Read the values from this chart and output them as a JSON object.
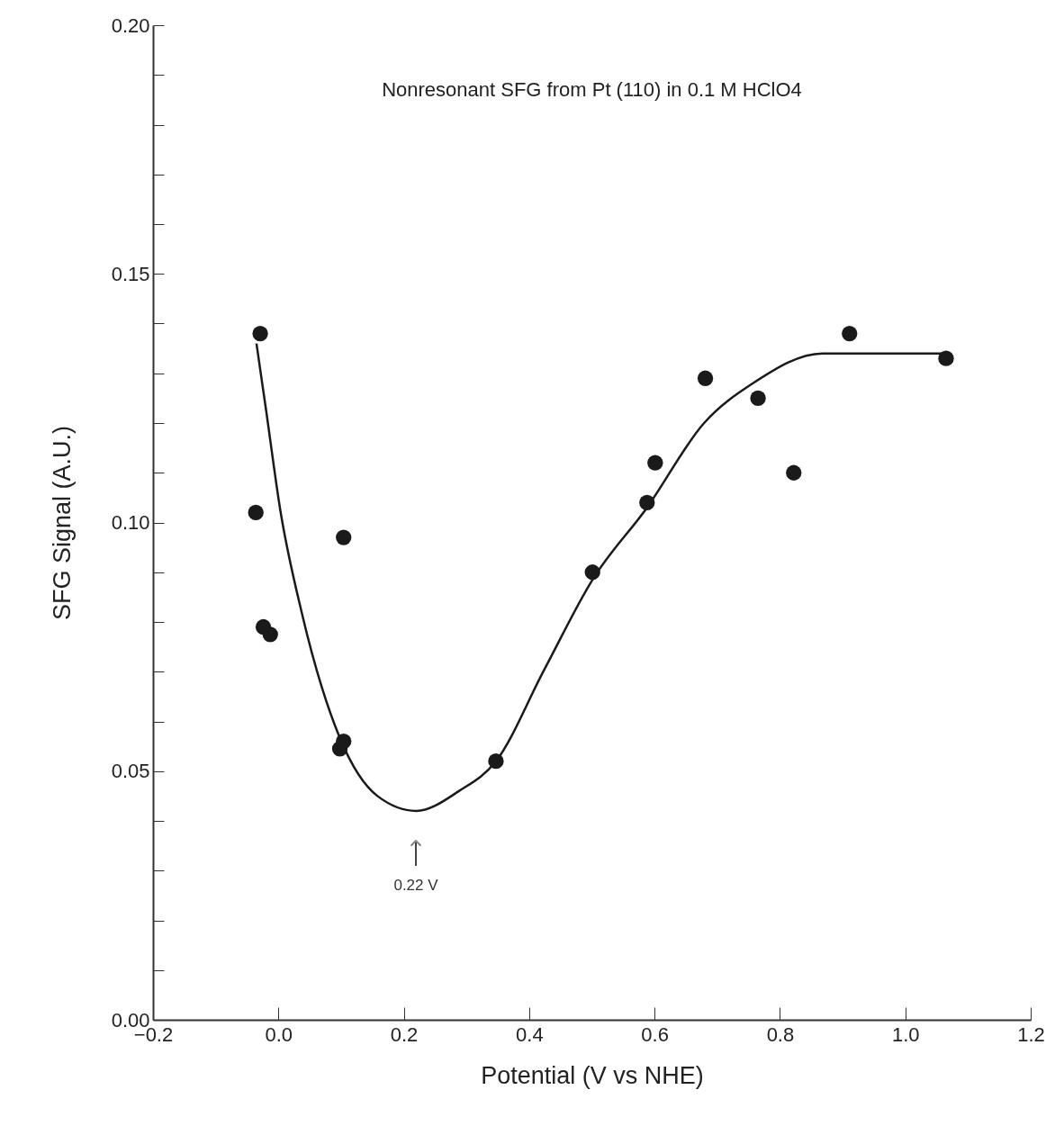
{
  "chart_data": {
    "type": "scatter",
    "title": "Nonresonant SFG from Pt (110) in 0.1 M HClO4",
    "xlabel": "Potential (V vs NHE)",
    "ylabel": "SFG Signal (A.U.)",
    "series": [
      {
        "color": "#1a1a1a",
        "marker": "circle",
        "x": [
          -0.029,
          -0.036,
          -0.024,
          -0.013,
          0.098,
          0.104,
          0.104,
          0.347,
          0.501,
          0.588,
          0.601,
          0.681,
          0.765,
          0.822,
          0.911,
          1.065
        ],
        "values": [
          0.138,
          0.102,
          0.079,
          0.0775,
          0.0545,
          0.056,
          0.097,
          0.052,
          0.09,
          0.104,
          0.112,
          0.129,
          0.125,
          0.11,
          0.138,
          0.133
        ]
      },
      {
        "type": "line",
        "color": "#1a1a1a",
        "line_style": "solid",
        "x": [
          -0.035,
          -0.019,
          0.003,
          0.037,
          0.098,
          0.158,
          0.22,
          0.288,
          0.347,
          0.424,
          0.501,
          0.588,
          0.679,
          0.757,
          0.868,
          1.068
        ],
        "values": [
          0.136,
          0.122,
          0.1025,
          0.082,
          0.0567,
          0.045,
          0.042,
          0.046,
          0.052,
          0.0704,
          0.0885,
          0.103,
          0.12,
          0.128,
          0.134,
          0.134
        ]
      }
    ],
    "annotations": [
      "0.22 V"
    ],
    "xlim": [
      -0.2,
      1.2
    ],
    "xticks": [
      {
        "value": -0.2,
        "label": "−0.2"
      },
      {
        "value": 0,
        "label": "0.0"
      },
      0.2,
      0.4,
      0.6,
      0.8,
      {
        "value": 1,
        "label": "1.0"
      },
      1.2
    ],
    "ylim": [
      0,
      0.2
    ],
    "yticks": [
      {
        "value": 0,
        "label": "0.00"
      },
      {
        "value": 0.01,
        "label": null
      },
      {
        "value": 0.02,
        "label": null
      },
      {
        "value": 0.03,
        "label": null
      },
      {
        "value": 0.04,
        "label": null
      },
      {
        "value": 0.05,
        "label": "0.05"
      },
      {
        "value": 0.06,
        "label": null
      },
      {
        "value": 0.07,
        "label": null
      },
      {
        "value": 0.08,
        "label": null
      },
      {
        "value": 0.09,
        "label": null
      },
      {
        "value": 0.1,
        "label": "0.10"
      },
      {
        "value": 0.11,
        "label": null
      },
      {
        "value": 0.12,
        "label": null
      },
      {
        "value": 0.13,
        "label": null
      },
      {
        "value": 0.14,
        "label": null
      },
      {
        "value": 0.15,
        "label": "0.15"
      },
      {
        "value": 0.16,
        "label": null
      },
      {
        "value": 0.17,
        "label": null
      },
      {
        "value": 0.18,
        "label": null
      },
      {
        "value": 0.19,
        "label": null
      },
      {
        "value": 0.2,
        "label": "0.20"
      }
    ]
  }
}
